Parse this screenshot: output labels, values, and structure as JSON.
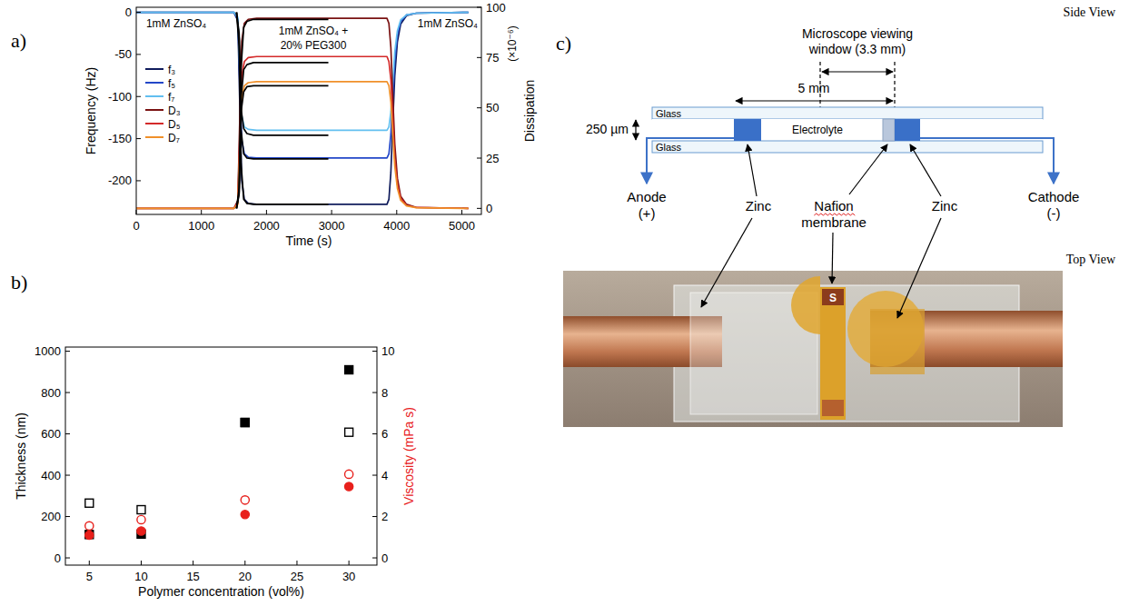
{
  "chart_data": [
    {
      "type": "line",
      "panel": "a)",
      "x_label": "Time (s)",
      "y_label": "Frequency (Hz)",
      "y2_label": "Dissipation",
      "y2_unit": "(×10⁻⁶)",
      "xlim": [
        0,
        5300
      ],
      "xticks": [
        0,
        1000,
        2000,
        3000,
        4000,
        5000
      ],
      "ylim": [
        -240,
        6
      ],
      "yticks": [
        -200,
        -150,
        -100,
        -50,
        0
      ],
      "y2lim": [
        -3,
        100
      ],
      "y2ticks": [
        0,
        25,
        50,
        75,
        100
      ],
      "legend": "upper-left",
      "annotations": [
        "1mM ZnSO₄",
        "1mM ZnSO₄ + 20% PEG300",
        "1mM ZnSO₄"
      ],
      "series": [
        {
          "name": "f₃",
          "color": "#101c5c",
          "x": [
            0,
            1500,
            1560,
            1590,
            1620,
            1660,
            1720,
            1850,
            3850,
            3880,
            3910,
            3940,
            3970,
            4010,
            4060,
            4150,
            4300,
            5100
          ],
          "values": [
            0,
            0,
            -10,
            -110,
            -200,
            -222,
            -227,
            -228,
            -228,
            -222,
            -190,
            -130,
            -75,
            -35,
            -14,
            -4,
            -1,
            0
          ]
        },
        {
          "name": "f₅",
          "color": "#2347c8",
          "x": [
            0,
            1500,
            1560,
            1590,
            1620,
            1660,
            1720,
            1850,
            3850,
            3880,
            3910,
            3940,
            3970,
            4010,
            4060,
            4150,
            4300,
            5100
          ],
          "values": [
            0,
            0,
            -8,
            -85,
            -152,
            -168,
            -172,
            -173,
            -173,
            -168,
            -145,
            -100,
            -58,
            -27,
            -11,
            -3,
            -1,
            0
          ]
        },
        {
          "name": "f₇",
          "color": "#62bff0",
          "x": [
            0,
            1500,
            1560,
            1590,
            1620,
            1660,
            1720,
            1850,
            3850,
            3880,
            3910,
            3940,
            3970,
            4010,
            4060,
            4150,
            4300,
            5100
          ],
          "values": [
            0,
            0,
            -6,
            -70,
            -123,
            -136,
            -139,
            -140,
            -140,
            -136,
            -118,
            -82,
            -47,
            -22,
            -9,
            -3,
            -1,
            0
          ]
        },
        {
          "name": "D₃",
          "color": "#7a1212",
          "axis": "y2",
          "x": [
            0,
            1500,
            1560,
            1590,
            1620,
            1660,
            1720,
            1850,
            3850,
            3880,
            3910,
            3940,
            3970,
            4010,
            4060,
            4150,
            4300,
            5100
          ],
          "values": [
            0,
            0,
            4,
            45,
            83,
            92,
            94,
            94.5,
            94.5,
            92,
            80,
            55,
            32,
            15,
            6,
            2,
            0.5,
            0
          ]
        },
        {
          "name": "D₅",
          "color": "#d42a2a",
          "axis": "y2",
          "x": [
            0,
            1500,
            1560,
            1590,
            1620,
            1660,
            1720,
            1850,
            3850,
            3880,
            3910,
            3940,
            3970,
            4010,
            4060,
            4150,
            4300,
            5100
          ],
          "values": [
            0,
            0,
            3,
            36,
            66,
            73,
            75,
            75.5,
            75.5,
            73,
            64,
            44,
            25,
            12,
            5,
            1.5,
            0.4,
            0
          ]
        },
        {
          "name": "D₇",
          "color": "#f0902a",
          "axis": "y2",
          "x": [
            0,
            1500,
            1560,
            1590,
            1620,
            1660,
            1720,
            1850,
            3850,
            3880,
            3910,
            3940,
            3970,
            4010,
            4060,
            4150,
            4300,
            5100
          ],
          "values": [
            0,
            0,
            2,
            30,
            55,
            61,
            62.5,
            63,
            63,
            61,
            53,
            36,
            21,
            10,
            4,
            1.2,
            0.3,
            0
          ]
        },
        {
          "color": "#000000",
          "x": [
            1540,
            1580,
            1610,
            1650,
            1700,
            1800,
            2950
          ],
          "values": [
            0,
            -40,
            -180,
            -222,
            -227,
            -228,
            -228
          ]
        },
        {
          "color": "#000000",
          "x": [
            1540,
            1580,
            1610,
            1650,
            1700,
            1800,
            2950
          ],
          "values": [
            0,
            -30,
            -140,
            -168,
            -173,
            -174,
            -174
          ]
        },
        {
          "color": "#000000",
          "x": [
            1540,
            1580,
            1610,
            1650,
            1700,
            1800,
            2950
          ],
          "values": [
            0,
            -25,
            -115,
            -138,
            -144,
            -146,
            -146
          ]
        },
        {
          "color": "#000000",
          "axis": "y2",
          "x": [
            1540,
            1580,
            1610,
            1650,
            1700,
            1800,
            2950
          ],
          "values": [
            0,
            10,
            70,
            90,
            93,
            94,
            94
          ]
        },
        {
          "color": "#000000",
          "axis": "y2",
          "x": [
            1540,
            1580,
            1610,
            1650,
            1700,
            1800,
            2950
          ],
          "values": [
            0,
            8,
            55,
            69,
            71.5,
            72.5,
            72.5
          ]
        },
        {
          "color": "#000000",
          "axis": "y2",
          "x": [
            1540,
            1580,
            1610,
            1650,
            1700,
            1800,
            2950
          ],
          "values": [
            0,
            7,
            48,
            58,
            60.5,
            61,
            61
          ]
        }
      ]
    },
    {
      "type": "scatter",
      "panel": "b)",
      "x_label": "Polymer concentration (vol%)",
      "y_label": "Thickness (nm)",
      "y2_label": "Viscosity (mPa s)",
      "xlim": [
        2.7,
        32.7
      ],
      "xticks": [
        5,
        10,
        15,
        20,
        25,
        30
      ],
      "ylim": [
        -35,
        1020
      ],
      "yticks": [
        0,
        200,
        400,
        600,
        800,
        1000
      ],
      "y2lim": [
        -0.35,
        10.2
      ],
      "y2ticks": [
        0,
        2,
        4,
        6,
        8,
        10
      ],
      "series": [
        {
          "color": "#000000",
          "marker": "open-square",
          "x": [
            5,
            10,
            20,
            30
          ],
          "values": [
            265,
            233,
            655,
            608
          ]
        },
        {
          "color": "#000000",
          "marker": "square",
          "x": [
            5,
            10,
            20,
            30
          ],
          "values": [
            113,
            115,
            655,
            910
          ]
        },
        {
          "color": "#e8201c",
          "marker": "open-circle",
          "axis": "y2",
          "x": [
            5,
            10,
            20,
            30
          ],
          "values": [
            1.55,
            1.85,
            2.8,
            4.05
          ]
        },
        {
          "color": "#e8201c",
          "marker": "circle",
          "axis": "y2",
          "x": [
            5,
            10,
            20,
            30
          ],
          "values": [
            1.1,
            1.3,
            2.1,
            3.45
          ]
        }
      ]
    }
  ],
  "diagram": {
    "panel": "c)",
    "side_view": {
      "title": "Side View",
      "window_label": "Microscope viewing window (3.3 mm)",
      "spacing_label": "5 mm",
      "gap_label": "250 µm",
      "glass_labels": [
        "Glass",
        "Glass"
      ],
      "electrolyte_label": "Electrolyte",
      "anode_label": "Anode (+)",
      "cathode_label": "Cathode (-)",
      "callouts": [
        "Zinc",
        "Nafion membrane",
        "Zinc"
      ]
    },
    "top_view": {
      "title": "Top View",
      "photo_mark": "S"
    }
  }
}
